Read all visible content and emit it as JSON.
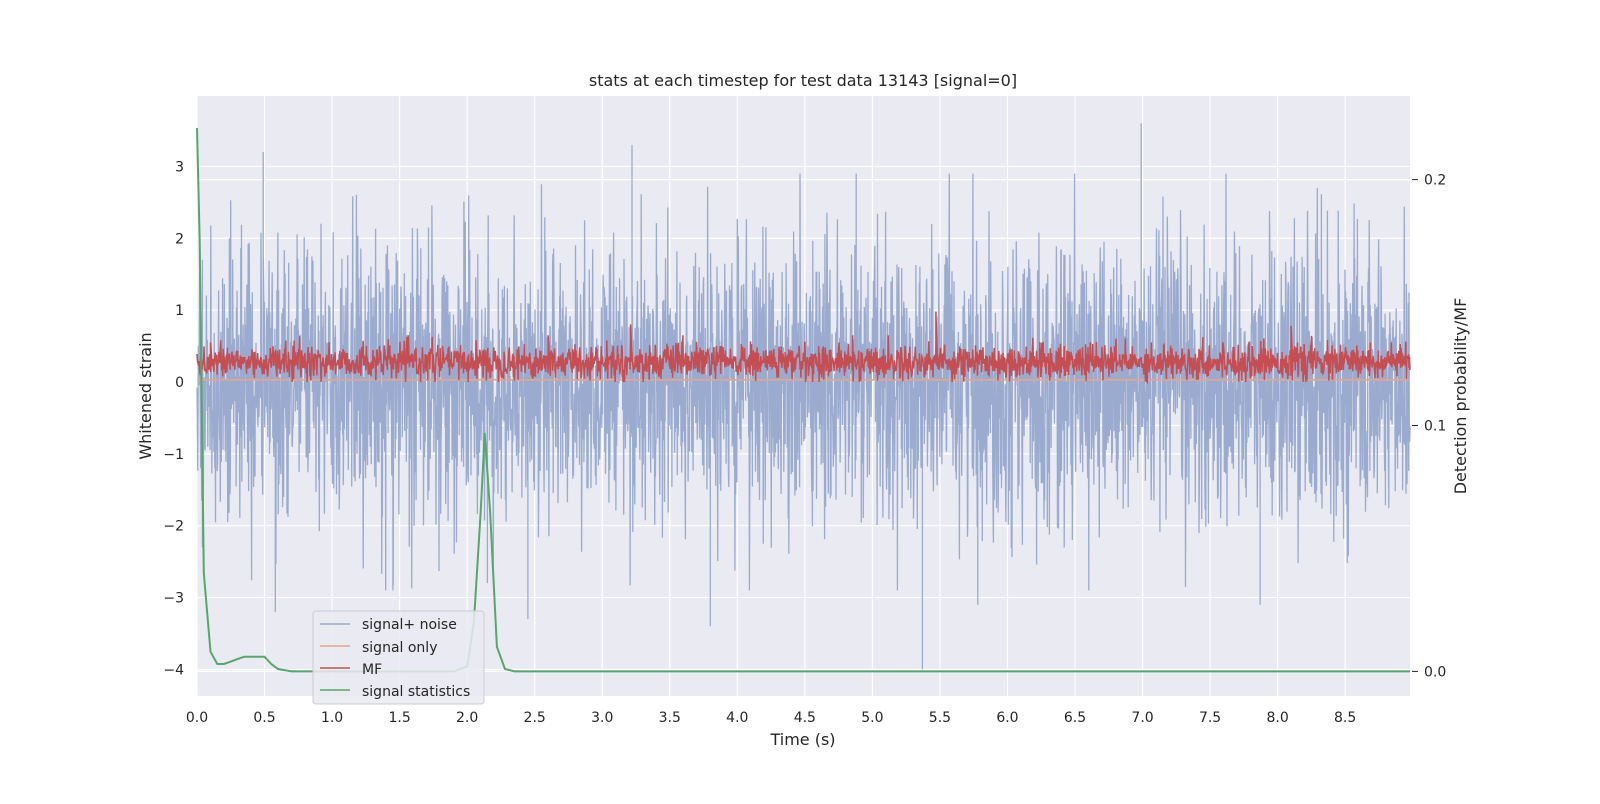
{
  "chart_data": {
    "type": "line",
    "title": "stats at each timestep for test data 13143 [signal=0]",
    "xlabel": "Time (s)",
    "ylabel": "Whitened strain",
    "y2label": "Detection probability/MF",
    "xlim": [
      0.0,
      8.98
    ],
    "ylim": [
      -4.37,
      3.98
    ],
    "y2lim": [
      -0.01,
      0.234
    ],
    "x_ticks": [
      "0.0",
      "0.5",
      "1.0",
      "1.5",
      "2.0",
      "2.5",
      "3.0",
      "3.5",
      "4.0",
      "4.5",
      "5.0",
      "5.5",
      "6.0",
      "6.5",
      "7.0",
      "7.5",
      "8.0",
      "8.5"
    ],
    "y_ticks": [
      "3",
      "2",
      "1",
      "0",
      "−1",
      "−2",
      "−3",
      "−4"
    ],
    "y2_ticks": [
      "0.2",
      "0.1",
      "0.0"
    ],
    "grid": true,
    "legend_position": "lower-left",
    "legend": [
      "signal+ noise",
      "signal only",
      "MF",
      "signal statistics"
    ],
    "series": [
      {
        "name": "signal+ noise",
        "axis": "left",
        "color": "#9AABCF",
        "description_values": "dense noise band",
        "envelope": {
          "typical_high": 2.0,
          "typical_low": -2.0,
          "std": 0.95
        },
        "spikes": [
          [
            0.04,
            1.7
          ],
          [
            0.04,
            -2.3
          ],
          [
            0.49,
            3.2
          ],
          [
            0.58,
            -3.2
          ],
          [
            1.45,
            -2.9
          ],
          [
            2.15,
            -2.8
          ],
          [
            2.45,
            -3.3
          ],
          [
            3.22,
            3.3
          ],
          [
            3.8,
            -3.4
          ],
          [
            4.88,
            2.9
          ],
          [
            5.37,
            -4.0
          ],
          [
            5.78,
            -3.1
          ],
          [
            6.99,
            3.6
          ],
          [
            7.87,
            -3.1
          ]
        ]
      },
      {
        "name": "signal only",
        "axis": "left",
        "color": "#E8A585",
        "values_constant": 0.03
      },
      {
        "name": "MF",
        "axis": "left",
        "color": "#C44E52",
        "band": {
          "low": 0.0,
          "high": 0.6,
          "mean": 0.28
        },
        "peaks": [
          [
            0.1,
            0.55
          ],
          [
            3.21,
            0.8
          ],
          [
            5.47,
            0.98
          ],
          [
            2.6,
            0.65
          ],
          [
            8.1,
            0.78
          ]
        ]
      },
      {
        "name": "signal statistics",
        "axis": "right",
        "color": "#55A868",
        "x": [
          0.0,
          0.02,
          0.05,
          0.1,
          0.15,
          0.2,
          0.25,
          0.3,
          0.35,
          0.4,
          0.45,
          0.5,
          0.55,
          0.6,
          0.7,
          0.8,
          1.0,
          1.5,
          1.9,
          2.0,
          2.05,
          2.1,
          2.13,
          2.17,
          2.22,
          2.28,
          2.35,
          2.5,
          4.0,
          4.1,
          8.98
        ],
        "values": [
          0.221,
          0.175,
          0.04,
          0.008,
          0.003,
          0.003,
          0.004,
          0.005,
          0.006,
          0.006,
          0.006,
          0.006,
          0.003,
          0.001,
          0.0,
          0.0,
          0.0,
          0.0,
          0.0,
          0.002,
          0.02,
          0.065,
          0.097,
          0.065,
          0.01,
          0.001,
          0.0,
          0.0,
          0.0,
          0.0,
          0.0
        ]
      }
    ]
  }
}
